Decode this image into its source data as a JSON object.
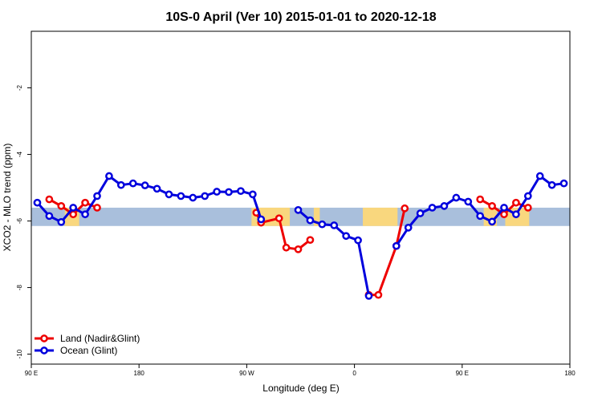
{
  "chart_data": {
    "type": "line",
    "title": "10S-0 April (Ver 10)   2015-01-01 to 2020-12-18",
    "xlabel": "Longitude (deg E)",
    "ylabel": "XCO2 - MLO trend (ppm)",
    "xlim": [
      90,
      540
    ],
    "ylim": [
      -10.3,
      -0.3
    ],
    "x_ticks": [
      {
        "value": 90,
        "label": "90 E"
      },
      {
        "value": 180,
        "label": "180"
      },
      {
        "value": 270,
        "label": "90 W"
      },
      {
        "value": 360,
        "label": "0"
      },
      {
        "value": 450,
        "label": "90 E"
      },
      {
        "value": 540,
        "label": "180"
      }
    ],
    "y_ticks": [
      {
        "value": -2,
        "label": "-2"
      },
      {
        "value": -4,
        "label": "-4"
      },
      {
        "value": -6,
        "label": "-6"
      },
      {
        "value": -8,
        "label": "-8"
      },
      {
        "value": -10,
        "label": "-10"
      }
    ],
    "grid": false,
    "legend_position": "bottom-left",
    "band": {
      "ymin": -6.15,
      "ymax": -5.6,
      "color": "#a9bfdc",
      "land_color": "#f9d77e"
    },
    "series": [
      {
        "name": "Land (Nadir&Glint)",
        "color": "#ee0000",
        "segments": [
          [
            [
              105,
              -5.35
            ],
            [
              115,
              -5.55
            ],
            [
              125,
              -5.8
            ],
            [
              135,
              -5.45
            ],
            [
              145,
              -5.6
            ]
          ],
          [
            [
              278,
              -5.75
            ],
            [
              282,
              -6.05
            ],
            [
              297,
              -5.92
            ],
            [
              303,
              -6.8
            ],
            [
              313,
              -6.85
            ],
            [
              323,
              -6.57
            ]
          ],
          [
            [
              372,
              -8.22
            ],
            [
              380,
              -8.22
            ],
            [
              395,
              -6.75
            ],
            [
              402,
              -5.62
            ]
          ],
          [
            [
              465,
              -5.35
            ],
            [
              475,
              -5.55
            ],
            [
              485,
              -5.8
            ],
            [
              495,
              -5.45
            ],
            [
              505,
              -5.6
            ]
          ]
        ]
      },
      {
        "name": "Ocean (Glint)",
        "color": "#0000dd",
        "segments": [
          [
            [
              95,
              -5.45
            ],
            [
              105,
              -5.85
            ],
            [
              115,
              -6.03
            ],
            [
              125,
              -5.6
            ],
            [
              135,
              -5.8
            ],
            [
              145,
              -5.25
            ],
            [
              155,
              -4.65
            ],
            [
              165,
              -4.92
            ],
            [
              175,
              -4.87
            ],
            [
              185,
              -4.93
            ],
            [
              195,
              -5.03
            ],
            [
              205,
              -5.2
            ],
            [
              215,
              -5.25
            ],
            [
              225,
              -5.3
            ],
            [
              235,
              -5.25
            ],
            [
              245,
              -5.12
            ],
            [
              255,
              -5.13
            ],
            [
              265,
              -5.1
            ],
            [
              275,
              -5.2
            ],
            [
              282,
              -5.95
            ]
          ],
          [
            [
              313,
              -5.67
            ],
            [
              323,
              -5.98
            ],
            [
              333,
              -6.1
            ],
            [
              343,
              -6.13
            ],
            [
              353,
              -6.45
            ],
            [
              363,
              -6.58
            ],
            [
              372,
              -8.25
            ]
          ],
          [
            [
              395,
              -6.75
            ],
            [
              405,
              -6.2
            ],
            [
              415,
              -5.77
            ],
            [
              425,
              -5.6
            ],
            [
              435,
              -5.55
            ],
            [
              445,
              -5.3
            ],
            [
              455,
              -5.42
            ],
            [
              465,
              -5.85
            ],
            [
              475,
              -6.02
            ],
            [
              485,
              -5.6
            ],
            [
              495,
              -5.8
            ],
            [
              505,
              -5.25
            ],
            [
              515,
              -4.65
            ],
            [
              525,
              -4.92
            ],
            [
              535,
              -4.87
            ]
          ]
        ]
      }
    ]
  }
}
